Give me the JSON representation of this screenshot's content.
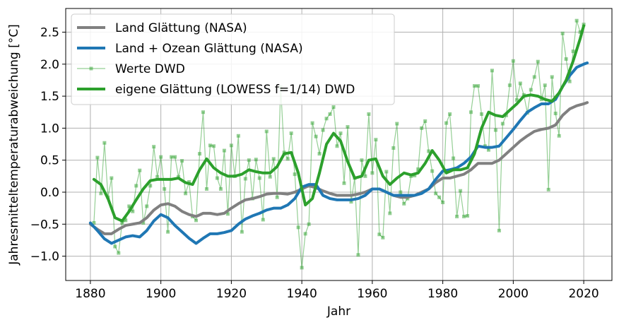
{
  "chart_data": {
    "type": "line",
    "title": "",
    "xlabel": "Jahr",
    "ylabel": "Jahresmitteltemperaturabweichung [°C]",
    "xlim": [
      1873,
      2028
    ],
    "ylim": [
      -1.38,
      2.87
    ],
    "xticks": [
      1880,
      1900,
      1920,
      1940,
      1960,
      1980,
      2000,
      2020
    ],
    "yticks": [
      -1.0,
      -0.5,
      0.0,
      0.5,
      1.0,
      1.5,
      2.0,
      2.5
    ],
    "xtick_labels": [
      "1880",
      "1900",
      "1920",
      "1940",
      "1960",
      "1980",
      "2000",
      "2020"
    ],
    "ytick_labels": [
      "−1.0",
      "−0.5",
      "0.0",
      "0.5",
      "1.0",
      "1.5",
      "2.0",
      "2.5"
    ],
    "grid": true,
    "legend_position": "top-left",
    "series": [
      {
        "name": "Land Glättung (NASA)",
        "color": "#808080",
        "style": "thick-line",
        "x": [
          1880,
          1882,
          1884,
          1886,
          1888,
          1890,
          1892,
          1894,
          1896,
          1898,
          1900,
          1902,
          1904,
          1906,
          1908,
          1910,
          1912,
          1914,
          1916,
          1918,
          1920,
          1922,
          1924,
          1926,
          1928,
          1930,
          1932,
          1934,
          1936,
          1938,
          1940,
          1942,
          1944,
          1946,
          1948,
          1950,
          1952,
          1954,
          1956,
          1958,
          1960,
          1962,
          1964,
          1966,
          1968,
          1970,
          1972,
          1974,
          1976,
          1978,
          1980,
          1982,
          1984,
          1986,
          1988,
          1990,
          1992,
          1994,
          1996,
          1998,
          2000,
          2002,
          2004,
          2006,
          2008,
          2010,
          2012,
          2014,
          2016,
          2018,
          2020,
          2021
        ],
        "y": [
          -0.5,
          -0.58,
          -0.65,
          -0.65,
          -0.58,
          -0.52,
          -0.5,
          -0.48,
          -0.4,
          -0.28,
          -0.2,
          -0.18,
          -0.22,
          -0.3,
          -0.35,
          -0.38,
          -0.33,
          -0.33,
          -0.35,
          -0.33,
          -0.25,
          -0.18,
          -0.12,
          -0.1,
          -0.07,
          -0.03,
          -0.02,
          -0.02,
          -0.03,
          0.0,
          0.05,
          0.1,
          0.07,
          0.02,
          -0.02,
          -0.05,
          -0.05,
          -0.05,
          -0.03,
          0.0,
          0.05,
          0.05,
          0.0,
          -0.05,
          -0.08,
          -0.08,
          -0.05,
          0.0,
          0.05,
          0.15,
          0.22,
          0.22,
          0.25,
          0.28,
          0.35,
          0.45,
          0.45,
          0.45,
          0.5,
          0.6,
          0.7,
          0.8,
          0.88,
          0.95,
          0.98,
          1.0,
          1.05,
          1.2,
          1.3,
          1.35,
          1.38,
          1.4
        ]
      },
      {
        "name": "Land + Ozean Glättung (NASA)",
        "color": "#1f77b4",
        "style": "thick-line",
        "x": [
          1880,
          1882,
          1884,
          1886,
          1888,
          1890,
          1892,
          1894,
          1896,
          1898,
          1900,
          1902,
          1904,
          1906,
          1908,
          1910,
          1912,
          1914,
          1916,
          1918,
          1920,
          1922,
          1924,
          1926,
          1928,
          1930,
          1932,
          1934,
          1936,
          1938,
          1940,
          1942,
          1944,
          1946,
          1948,
          1950,
          1952,
          1954,
          1956,
          1958,
          1960,
          1962,
          1964,
          1966,
          1968,
          1970,
          1972,
          1974,
          1976,
          1978,
          1980,
          1982,
          1984,
          1986,
          1988,
          1990,
          1992,
          1994,
          1996,
          1998,
          2000,
          2002,
          2004,
          2006,
          2008,
          2010,
          2012,
          2014,
          2016,
          2018,
          2020,
          2021
        ],
        "y": [
          -0.48,
          -0.6,
          -0.73,
          -0.8,
          -0.75,
          -0.7,
          -0.68,
          -0.7,
          -0.6,
          -0.45,
          -0.35,
          -0.4,
          -0.52,
          -0.62,
          -0.72,
          -0.8,
          -0.72,
          -0.65,
          -0.65,
          -0.63,
          -0.6,
          -0.5,
          -0.42,
          -0.37,
          -0.33,
          -0.28,
          -0.25,
          -0.25,
          -0.2,
          -0.1,
          0.08,
          0.12,
          0.12,
          -0.05,
          -0.1,
          -0.12,
          -0.12,
          -0.12,
          -0.1,
          -0.05,
          0.05,
          0.05,
          0.0,
          -0.05,
          -0.05,
          -0.05,
          -0.05,
          -0.02,
          0.05,
          0.2,
          0.33,
          0.35,
          0.38,
          0.45,
          0.55,
          0.72,
          0.7,
          0.7,
          0.72,
          0.85,
          0.98,
          1.12,
          1.25,
          1.32,
          1.38,
          1.38,
          1.45,
          1.65,
          1.82,
          1.95,
          2.0,
          2.02
        ]
      },
      {
        "name": "Werte DWD",
        "color": "#2ca02c",
        "style": "thin-line-square-markers",
        "x": [
          1881,
          1882,
          1883,
          1884,
          1885,
          1886,
          1887,
          1888,
          1889,
          1890,
          1891,
          1892,
          1893,
          1894,
          1895,
          1896,
          1897,
          1898,
          1899,
          1900,
          1901,
          1902,
          1903,
          1904,
          1905,
          1906,
          1907,
          1908,
          1909,
          1910,
          1911,
          1912,
          1913,
          1914,
          1915,
          1916,
          1917,
          1918,
          1919,
          1920,
          1921,
          1922,
          1923,
          1924,
          1925,
          1926,
          1927,
          1928,
          1929,
          1930,
          1931,
          1932,
          1933,
          1934,
          1935,
          1936,
          1937,
          1938,
          1939,
          1940,
          1941,
          1942,
          1943,
          1944,
          1945,
          1946,
          1947,
          1948,
          1949,
          1950,
          1951,
          1952,
          1953,
          1954,
          1955,
          1956,
          1957,
          1958,
          1959,
          1960,
          1961,
          1962,
          1963,
          1964,
          1965,
          1966,
          1967,
          1968,
          1969,
          1970,
          1971,
          1972,
          1973,
          1974,
          1975,
          1976,
          1977,
          1978,
          1979,
          1980,
          1981,
          1982,
          1983,
          1984,
          1985,
          1986,
          1987,
          1988,
          1989,
          1990,
          1991,
          1992,
          1993,
          1994,
          1995,
          1996,
          1997,
          1998,
          1999,
          2000,
          2001,
          2002,
          2003,
          2004,
          2005,
          2006,
          2007,
          2008,
          2009,
          2010,
          2011,
          2012,
          2013,
          2014,
          2015,
          2016,
          2017,
          2018,
          2019,
          2020
        ],
        "y": [
          -0.48,
          0.54,
          -0.02,
          0.77,
          -0.08,
          0.22,
          -0.85,
          -0.95,
          -0.48,
          -0.44,
          -0.22,
          -0.3,
          0.1,
          0.34,
          -0.48,
          -0.22,
          0.1,
          0.71,
          0.24,
          0.55,
          0.05,
          -0.62,
          0.55,
          0.55,
          0.24,
          0.49,
          -0.02,
          0.16,
          -0.38,
          -0.44,
          0.6,
          1.25,
          0.05,
          0.73,
          0.72,
          0.22,
          0.05,
          0.65,
          -0.34,
          0.73,
          0.25,
          0.88,
          -0.62,
          0.21,
          0.5,
          -0.1,
          0.51,
          0.22,
          -0.43,
          0.95,
          0.24,
          0.52,
          -0.08,
          1.64,
          0.62,
          0.52,
          0.92,
          0.28,
          -0.55,
          -1.18,
          -0.65,
          -0.5,
          1.08,
          0.87,
          0.6,
          0.97,
          1.15,
          1.22,
          1.33,
          0.72,
          0.92,
          0.14,
          1.02,
          -0.15,
          0.22,
          -0.98,
          0.5,
          0.25,
          1.22,
          0.3,
          0.82,
          -0.66,
          -0.71,
          0.32,
          -0.33,
          0.69,
          1.07,
          0.0,
          -0.18,
          -0.1,
          0.25,
          0.26,
          0.36,
          1.0,
          1.11,
          0.64,
          0.33,
          -0.02,
          -0.08,
          -0.16,
          1.08,
          1.22,
          0.53,
          -0.38,
          0.02,
          -0.38,
          -0.37,
          1.25,
          1.66,
          1.66,
          1.22,
          0.72,
          0.66,
          1.9,
          0.97,
          -0.6,
          1.07,
          1.2,
          1.67,
          2.05,
          1.44,
          1.7,
          1.52,
          1.24,
          1.6,
          1.8,
          2.04,
          1.45,
          1.67,
          0.04,
          1.8,
          1.23,
          0.88,
          2.48,
          2.08,
          1.73,
          2.2,
          2.68,
          2.5,
          2.62
        ]
      },
      {
        "name": "eigene Glättung (LOWESS f=1/14) DWD",
        "color": "#2ca02c",
        "style": "thick-line",
        "x": [
          1881,
          1883,
          1885,
          1887,
          1889,
          1891,
          1893,
          1895,
          1897,
          1899,
          1901,
          1903,
          1905,
          1907,
          1909,
          1911,
          1913,
          1915,
          1917,
          1919,
          1921,
          1923,
          1925,
          1927,
          1929,
          1931,
          1933,
          1935,
          1937,
          1939,
          1941,
          1943,
          1945,
          1947,
          1949,
          1951,
          1953,
          1955,
          1957,
          1959,
          1961,
          1963,
          1965,
          1967,
          1969,
          1971,
          1973,
          1975,
          1977,
          1979,
          1981,
          1983,
          1985,
          1987,
          1989,
          1991,
          1993,
          1995,
          1997,
          1999,
          2001,
          2003,
          2005,
          2007,
          2009,
          2011,
          2013,
          2015,
          2017,
          2019,
          2020
        ],
        "y": [
          0.2,
          0.12,
          -0.1,
          -0.4,
          -0.45,
          -0.3,
          -0.12,
          0.05,
          0.18,
          0.2,
          0.2,
          0.2,
          0.22,
          0.15,
          0.12,
          0.35,
          0.52,
          0.38,
          0.3,
          0.25,
          0.25,
          0.28,
          0.35,
          0.32,
          0.3,
          0.3,
          0.4,
          0.6,
          0.62,
          0.3,
          -0.2,
          -0.1,
          0.3,
          0.75,
          0.92,
          0.8,
          0.48,
          0.22,
          0.25,
          0.5,
          0.52,
          0.25,
          0.12,
          0.22,
          0.3,
          0.27,
          0.3,
          0.45,
          0.65,
          0.5,
          0.3,
          0.35,
          0.35,
          0.38,
          0.6,
          1.0,
          1.25,
          1.2,
          1.18,
          1.28,
          1.38,
          1.5,
          1.52,
          1.5,
          1.45,
          1.42,
          1.55,
          1.75,
          2.05,
          2.4,
          2.6
        ]
      }
    ]
  }
}
